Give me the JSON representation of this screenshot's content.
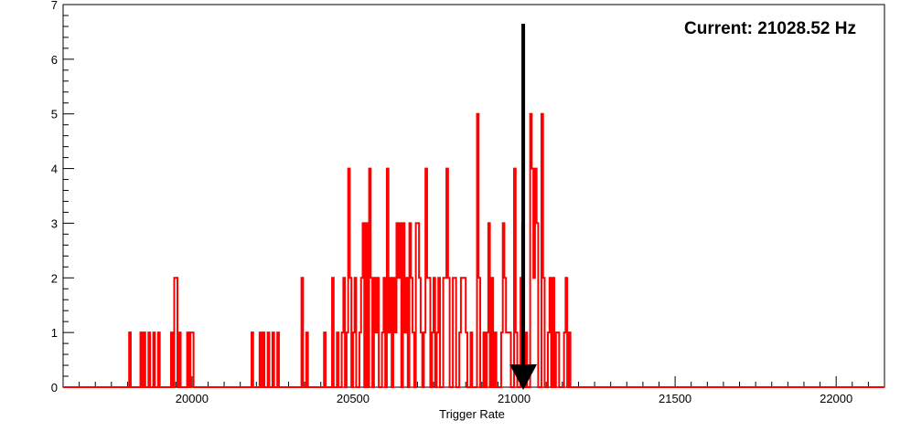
{
  "chart_data": {
    "type": "histogram",
    "xlabel": "Trigger Rate",
    "ylabel": "",
    "title": "",
    "xlim": [
      19600,
      22150
    ],
    "ylim": [
      0,
      7
    ],
    "x_ticks": [
      20000,
      20500,
      21000,
      21500,
      22000
    ],
    "x_tick_labels": [
      "20000",
      "20500",
      "21000",
      "21500",
      "22000"
    ],
    "y_ticks": [
      0,
      1,
      2,
      3,
      4,
      5,
      6,
      7
    ],
    "y_tick_labels": [
      "0",
      "1",
      "2",
      "3",
      "4",
      "5",
      "6",
      "7"
    ],
    "grid": false,
    "line_color": "#ff0000",
    "bin_start": 19600,
    "bin_width": 5,
    "bin_values": [
      0,
      0,
      0,
      0,
      0,
      0,
      0,
      0,
      0,
      0,
      0,
      0,
      0,
      0,
      0,
      0,
      0,
      0,
      0,
      0,
      0,
      0,
      0,
      0,
      0,
      0,
      0,
      0,
      0,
      0,
      0,
      0,
      0,
      0,
      0,
      0,
      0,
      0,
      0,
      0,
      0,
      1,
      0,
      0,
      0,
      0,
      0,
      0,
      1,
      0,
      1,
      0,
      0,
      1,
      0,
      0,
      1,
      0,
      0,
      1,
      0,
      0,
      0,
      0,
      0,
      0,
      0,
      1,
      0,
      2,
      2,
      0,
      1,
      0,
      0,
      0,
      0,
      1,
      0,
      1,
      1,
      0,
      0,
      0,
      0,
      0,
      0,
      0,
      0,
      0,
      0,
      0,
      0,
      0,
      0,
      0,
      0,
      0,
      0,
      0,
      0,
      0,
      0,
      0,
      0,
      0,
      0,
      0,
      0,
      0,
      0,
      0,
      0,
      0,
      0,
      0,
      0,
      1,
      0,
      0,
      0,
      0,
      1,
      0,
      1,
      0,
      0,
      1,
      0,
      0,
      1,
      0,
      0,
      1,
      0,
      0,
      0,
      0,
      0,
      0,
      0,
      0,
      0,
      0,
      0,
      0,
      0,
      0,
      2,
      0,
      0,
      1,
      0,
      0,
      0,
      0,
      0,
      0,
      0,
      0,
      0,
      0,
      1,
      0,
      0,
      0,
      0,
      2,
      0,
      0,
      1,
      0,
      0,
      1,
      2,
      0,
      1,
      4,
      2,
      0,
      1,
      2,
      0,
      0,
      1,
      2,
      3,
      0,
      3,
      0,
      4,
      2,
      0,
      2,
      1,
      2,
      0,
      0,
      1,
      2,
      0,
      4,
      1,
      2,
      0,
      2,
      1,
      3,
      2,
      3,
      0,
      3,
      1,
      2,
      0,
      3,
      2,
      1,
      0,
      3,
      3,
      2,
      1,
      0,
      1,
      4,
      2,
      2,
      0,
      1,
      2,
      0,
      1,
      2,
      0,
      0,
      2,
      2,
      4,
      2,
      0,
      0,
      2,
      2,
      0,
      0,
      1,
      2,
      2,
      2,
      1,
      0,
      0,
      1,
      0,
      0,
      0,
      5,
      2,
      0,
      0,
      1,
      0,
      1,
      3,
      0,
      2,
      0,
      1,
      0,
      0,
      0,
      1,
      3,
      2,
      1,
      1,
      1,
      0,
      0,
      4,
      1,
      0,
      0,
      2,
      3,
      0,
      1,
      0,
      0,
      5,
      4,
      2,
      4,
      3,
      0,
      0,
      5,
      2,
      0,
      0,
      1,
      2,
      0,
      2,
      0,
      1,
      1,
      0,
      0,
      0,
      1,
      2,
      0,
      1,
      0,
      0,
      0,
      0,
      0,
      0,
      0,
      0,
      0,
      0,
      0,
      0,
      0,
      0,
      0,
      0,
      0,
      0,
      0,
      0,
      0,
      0,
      0,
      0,
      0,
      0,
      0,
      0,
      0,
      0,
      0,
      0,
      0,
      0,
      0,
      0,
      0,
      0,
      0,
      0,
      0,
      0,
      0,
      0,
      0,
      0,
      0,
      0,
      0,
      0,
      0,
      0,
      0,
      0,
      0,
      0,
      0,
      0,
      0,
      0,
      0,
      0,
      0,
      0,
      0,
      0,
      0,
      0,
      0,
      0,
      0,
      0,
      0,
      0,
      0,
      0,
      0,
      0,
      0,
      0,
      0,
      0,
      0,
      0,
      0,
      0,
      0,
      0,
      0,
      0,
      0,
      0,
      0,
      0,
      0,
      0,
      0,
      0,
      0,
      0,
      0,
      0,
      0,
      0,
      0,
      0,
      0,
      0,
      0,
      0,
      0,
      0,
      0,
      0,
      0,
      0,
      0,
      0,
      0,
      0,
      0,
      0,
      0,
      0,
      0,
      0,
      0,
      0,
      0,
      0,
      0,
      0,
      0,
      0,
      0,
      0,
      0,
      0,
      0,
      0,
      0,
      0,
      0,
      0,
      0,
      0,
      0,
      0,
      0,
      0,
      0,
      0,
      0,
      0,
      0,
      0,
      0,
      0,
      0,
      0,
      0,
      0,
      0,
      0,
      0,
      0,
      0,
      0,
      0,
      0,
      0,
      0,
      0,
      0,
      0,
      0,
      0,
      0,
      0,
      0,
      0,
      0,
      0,
      0,
      0,
      0,
      0,
      0,
      0,
      0,
      0,
      0,
      0,
      0,
      0,
      0
    ],
    "marker": {
      "x": 21028.52,
      "y_top": 6.65,
      "y_bottom": 0,
      "label": "Current: 21028.52 Hz",
      "color": "#000000"
    }
  }
}
